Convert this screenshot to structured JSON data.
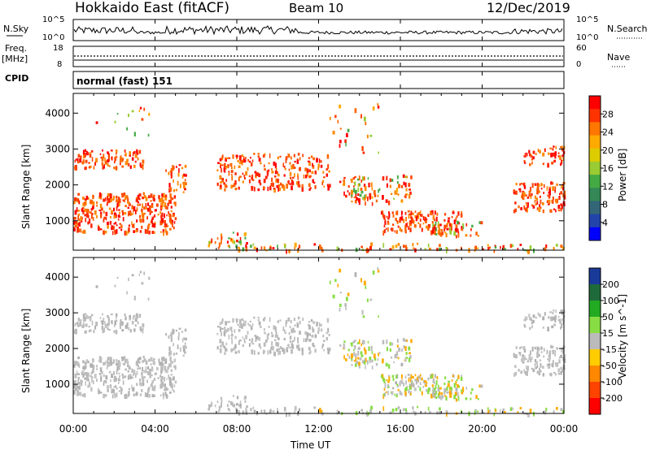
{
  "header": {
    "station": "Hokkaido East (fitACF)",
    "beam": "Beam 10",
    "date": "12/Dec/2019"
  },
  "nsky_panel": {
    "left_label": "N.Sky",
    "right_label": "N.Search",
    "left_ticks": [
      "10^5",
      "10^0"
    ],
    "right_ticks": [
      "10^5",
      "10^0"
    ]
  },
  "freq_panel": {
    "left_label_1": "Freq.",
    "left_label_2": "[MHz]",
    "right_label": "Nave",
    "left_ticks": [
      "18",
      "8"
    ],
    "right_ticks": [
      "60",
      "0"
    ]
  },
  "cpid_panel": {
    "label": "CPID",
    "text": "normal (fast) 151"
  },
  "chart_data": [
    {
      "type": "heatmap",
      "name": "power",
      "ylabel": "Slant Range [km]",
      "y_ticks": [
        "4000",
        "3000",
        "2000",
        "1000"
      ],
      "y_tick_values": [
        4000,
        3000,
        2000,
        1000
      ],
      "ylim": [
        180,
        4550
      ],
      "colorbar_label": "Power [dB]",
      "colorbar_ticks": [
        "28",
        "24",
        "20",
        "16",
        "12",
        "8",
        "4"
      ],
      "colorbar_colors": [
        "#ff0000",
        "#ff3300",
        "#ff7700",
        "#ffaa00",
        "#ddcc00",
        "#99cc33",
        "#44aa44",
        "#338855",
        "#336677",
        "#2244aa",
        "#0000ff"
      ]
    },
    {
      "type": "heatmap",
      "name": "velocity",
      "ylabel": "Slant Range [km]",
      "y_ticks": [
        "4000",
        "3000",
        "2000",
        "1000"
      ],
      "y_tick_values": [
        4000,
        3000,
        2000,
        1000
      ],
      "ylim": [
        180,
        4550
      ],
      "colorbar_label": "Velocity [m s^-1]",
      "colorbar_ticks": [
        "200",
        "100",
        "50",
        "15",
        "-15",
        "-50",
        "-100",
        "-200"
      ],
      "colorbar_colors": [
        "#1a3a9a",
        "#1f6a3a",
        "#22aa22",
        "#88dd44",
        "#bbbbbb",
        "#ffcc00",
        "#ff8800",
        "#ff4400",
        "#ff0000"
      ]
    }
  ],
  "x_axis": {
    "label": "Time UT",
    "ticks": [
      "00:00",
      "04:00",
      "08:00",
      "12:00",
      "16:00",
      "20:00",
      "00:00"
    ],
    "tick_hours": [
      0,
      4,
      8,
      12,
      16,
      20,
      24
    ]
  }
}
